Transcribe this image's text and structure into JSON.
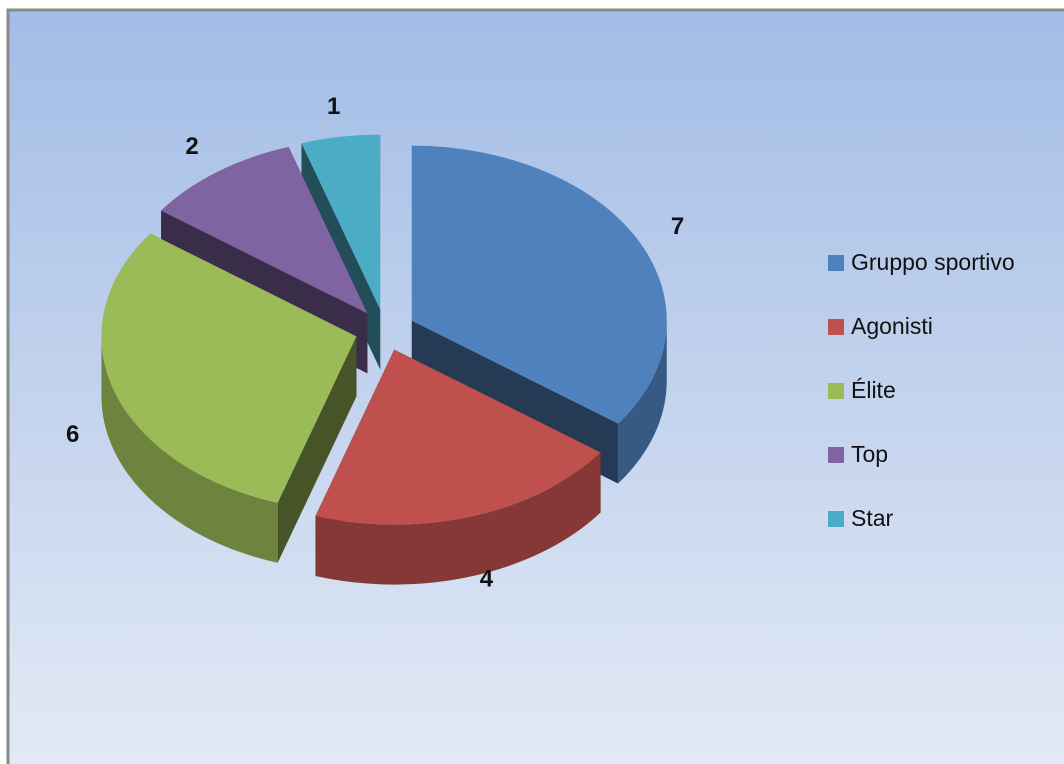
{
  "chart_data": {
    "type": "pie",
    "style": "3d-exploded",
    "categories": [
      "Gruppo sportivo",
      "Agonisti",
      "Élite",
      "Top",
      "Star"
    ],
    "values": [
      7,
      4,
      6,
      2,
      1
    ],
    "colors": [
      "#4f81bd",
      "#c0504d",
      "#9bbb59",
      "#8064a2",
      "#4bacc6"
    ],
    "legend": "right"
  }
}
